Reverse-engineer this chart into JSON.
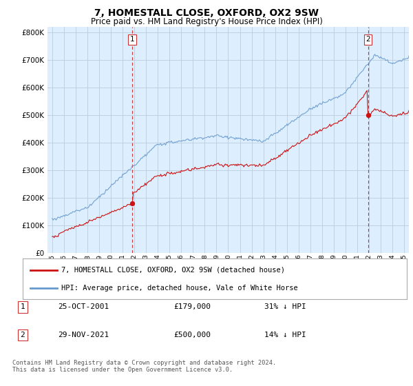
{
  "title": "7, HOMESTALL CLOSE, OXFORD, OX2 9SW",
  "subtitle": "Price paid vs. HM Land Registry's House Price Index (HPI)",
  "title_fontsize": 10,
  "subtitle_fontsize": 8.5,
  "background_color": "#ffffff",
  "plot_bg_color": "#ddeeff",
  "grid_color": "#bbccdd",
  "sale1_date_num": 2001.82,
  "sale1_price": 179000,
  "sale2_date_num": 2021.91,
  "sale2_price": 500000,
  "hpi_color": "#6699cc",
  "price_color": "#cc1111",
  "dashed_color": "#cc3333",
  "legend_label_price": "7, HOMESTALL CLOSE, OXFORD, OX2 9SW (detached house)",
  "legend_label_hpi": "HPI: Average price, detached house, Vale of White Horse",
  "table_rows": [
    [
      "1",
      "25-OCT-2001",
      "£179,000",
      "31% ↓ HPI"
    ],
    [
      "2",
      "29-NOV-2021",
      "£500,000",
      "14% ↓ HPI"
    ]
  ],
  "footnote": "Contains HM Land Registry data © Crown copyright and database right 2024.\nThis data is licensed under the Open Government Licence v3.0.",
  "ylim": [
    0,
    820000
  ],
  "yticks": [
    0,
    100000,
    200000,
    300000,
    400000,
    500000,
    600000,
    700000,
    800000
  ],
  "xlim_start": 1994.6,
  "xlim_end": 2025.4,
  "xticks": [
    1995,
    1996,
    1997,
    1998,
    1999,
    2000,
    2001,
    2002,
    2003,
    2004,
    2005,
    2006,
    2007,
    2008,
    2009,
    2010,
    2011,
    2012,
    2013,
    2014,
    2015,
    2016,
    2017,
    2018,
    2019,
    2020,
    2021,
    2022,
    2023,
    2024,
    2025
  ]
}
